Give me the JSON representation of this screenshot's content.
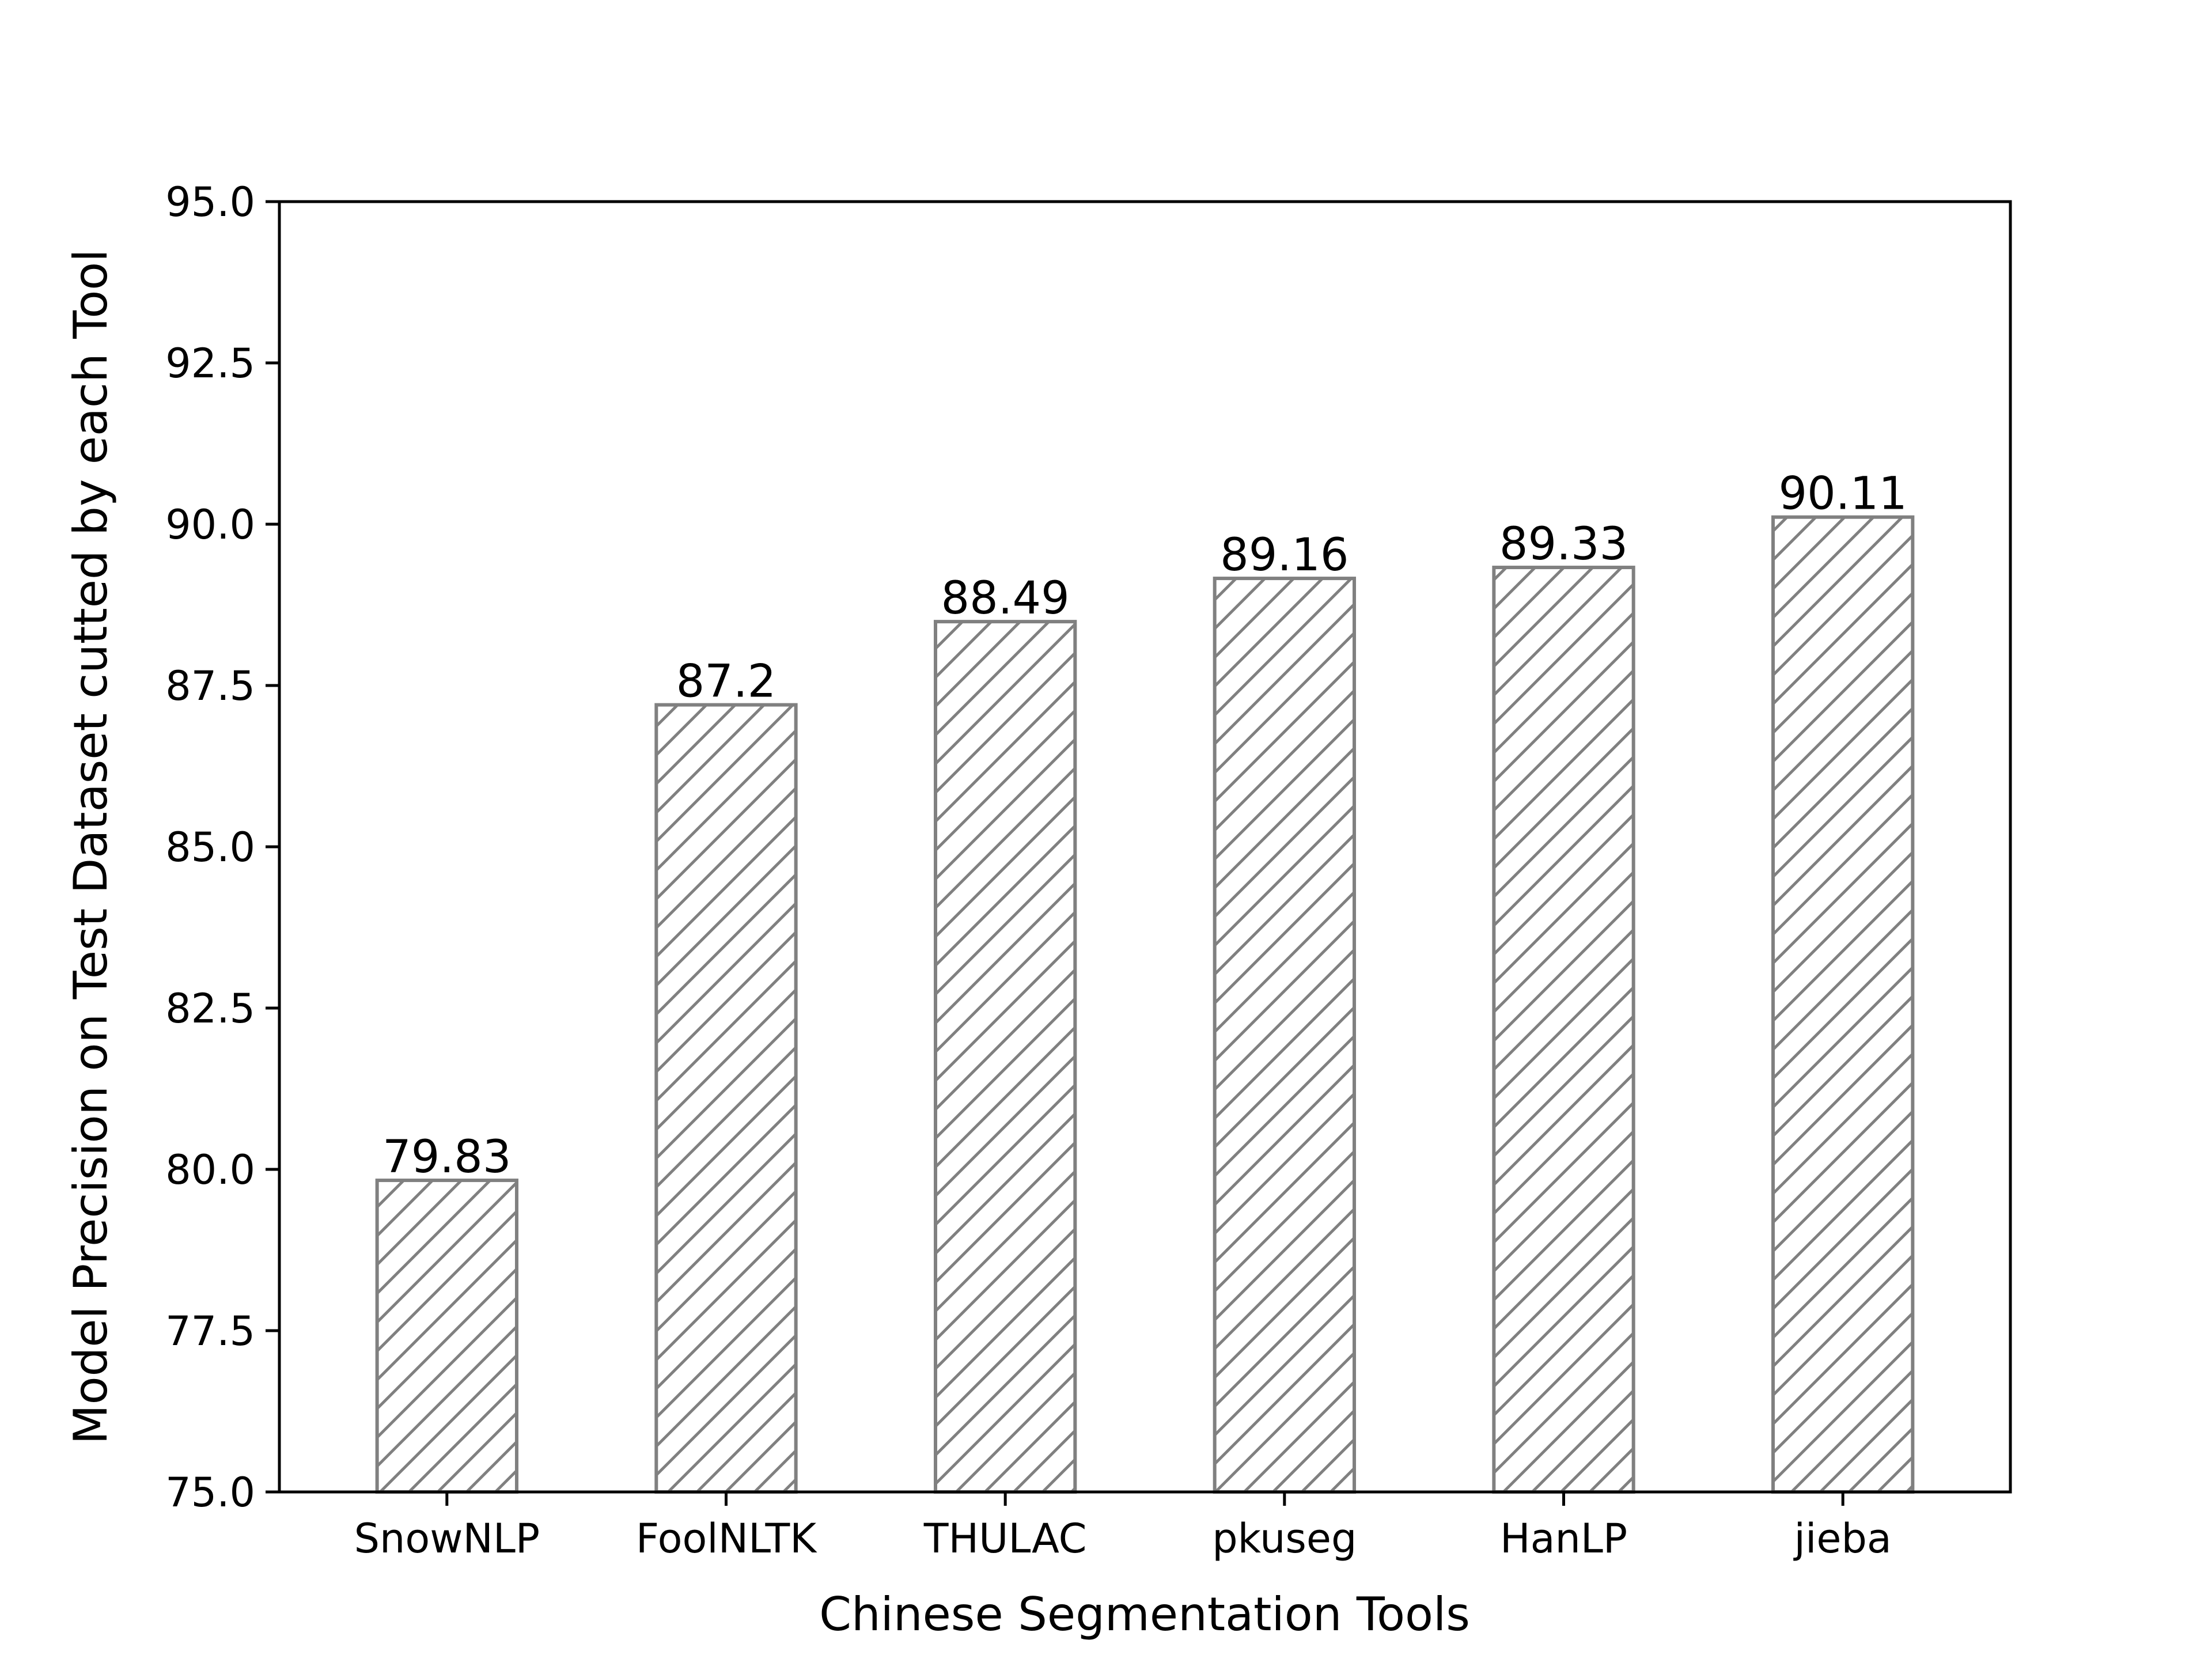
{
  "chart_data": {
    "type": "bar",
    "title": "",
    "xlabel": "Chinese Segmentation Tools",
    "ylabel": "Model Precision on Test Dataset cutted by each Tool",
    "categories": [
      "SnowNLP",
      "FoolNLTK",
      "THULAC",
      "pkuseg",
      "HanLP",
      "jieba"
    ],
    "values": [
      79.83,
      87.2,
      88.49,
      89.16,
      89.33,
      90.11
    ],
    "data_labels": [
      "79.83",
      "87.2",
      "88.49",
      "89.16",
      "89.33",
      "90.11"
    ],
    "ylim": [
      75.0,
      95.0
    ],
    "yticks": [
      75.0,
      77.5,
      80.0,
      82.5,
      85.0,
      87.5,
      90.0,
      92.5,
      95.0
    ],
    "ytick_labels": [
      "75.0",
      "77.5",
      "80.0",
      "82.5",
      "85.0",
      "87.5",
      "90.0",
      "92.5",
      "95.0"
    ],
    "grid": false,
    "legend": "none",
    "bar_style": "hatched",
    "colors": {
      "bar_edge": "#808080",
      "hatch": "#808080",
      "bar_fill": "#ffffff",
      "axes": "#000000"
    }
  }
}
